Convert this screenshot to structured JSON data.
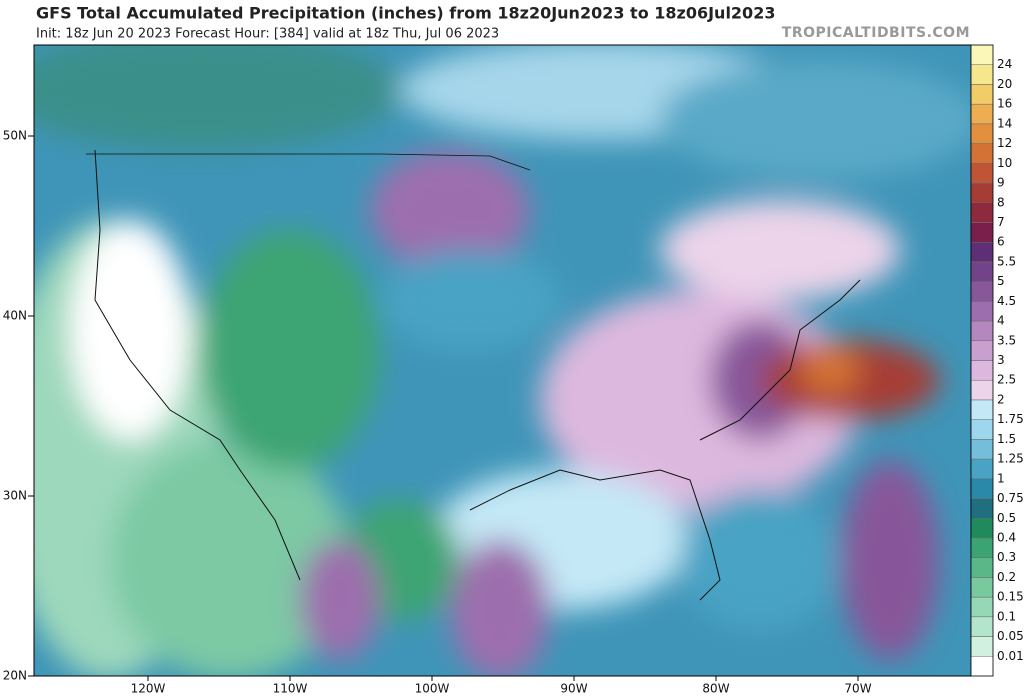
{
  "header": {
    "title": "GFS Total Accumulated Precipitation (inches) from 18z20Jun2023 to 18z06Jul2023",
    "subtitle": "Init: 18z Jun 20 2023   Forecast Hour: [384]   valid at 18z Thu, Jul 06 2023",
    "watermark": "TROPICALTIDBITS.COM"
  },
  "map": {
    "lat_ticks": [
      {
        "value": 50,
        "label": "50N"
      },
      {
        "value": 40,
        "label": "40N"
      },
      {
        "value": 30,
        "label": "30N"
      },
      {
        "value": 20,
        "label": "20N"
      }
    ],
    "lon_ticks": [
      {
        "value": -120,
        "label": "120W"
      },
      {
        "value": -110,
        "label": "110W"
      },
      {
        "value": -100,
        "label": "100W"
      },
      {
        "value": -90,
        "label": "90W"
      },
      {
        "value": -80,
        "label": "80W"
      },
      {
        "value": -70,
        "label": "70W"
      }
    ]
  },
  "colorbar": {
    "levels": [
      0.01,
      0.05,
      0.1,
      0.15,
      0.2,
      0.3,
      0.4,
      0.5,
      0.75,
      1,
      1.25,
      1.5,
      1.75,
      2,
      2.5,
      3,
      3.5,
      4,
      4.5,
      5,
      5.5,
      6,
      7,
      8,
      9,
      10,
      12,
      14,
      16,
      20,
      24
    ],
    "colors": [
      "#ffffff",
      "#d2f0e0",
      "#b4e4cc",
      "#96d8b6",
      "#78c99e",
      "#5ab888",
      "#3ca473",
      "#1f8a5c",
      "#1f6f80",
      "#2a88a8",
      "#4aa3c4",
      "#74bedb",
      "#9ed6ee",
      "#c4e8f6",
      "#ecd4ea",
      "#ddb8de",
      "#c99fcf",
      "#b487bf",
      "#9d6ead",
      "#87579a",
      "#724388",
      "#5e2f74",
      "#7a1f4c",
      "#8e2a3e",
      "#a63c36",
      "#bf5534",
      "#d47236",
      "#e2903e",
      "#ecae50",
      "#f2cc66",
      "#f6e68c",
      "#faf7b8"
    ]
  }
}
